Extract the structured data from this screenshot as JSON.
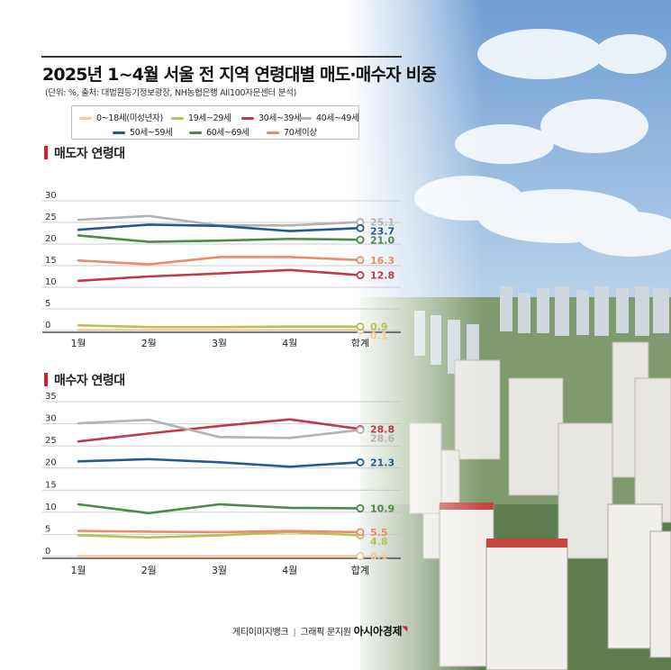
{
  "title": "2025년 1~4월 서울 전 지역 연령대별 매도·매수자 비중",
  "subtitle": "(단위: %, 출처: 대법원등기정보광장, NH농협은행 All100자문센터 분석)",
  "credit": {
    "image": "게티이미지뱅크",
    "graphic": "그래픽 문지원",
    "brand": "아시아경제"
  },
  "legend": [
    {
      "label": "0~18세(미성년자)",
      "color": "#f2c9a0"
    },
    {
      "label": "19세~29세",
      "color": "#b7bf55"
    },
    {
      "label": "30세~39세",
      "color": "#c0394a"
    },
    {
      "label": "40세~49세",
      "color": "#b3b3b3"
    },
    {
      "label": "50세~59세",
      "color": "#245a8f"
    },
    {
      "label": "60세~69세",
      "color": "#4c8a49"
    },
    {
      "label": "70세이상",
      "color": "#ec8a6a"
    }
  ],
  "chart_data": [
    {
      "type": "line",
      "title": "매도자 연령대",
      "categories": [
        "1월",
        "2월",
        "3월",
        "4월",
        "합계"
      ],
      "yticks": [
        "30",
        "25",
        "20",
        "15",
        "10",
        "5",
        "0"
      ],
      "ylim": [
        0,
        30
      ],
      "series": [
        {
          "name": "0~18세(미성년자)",
          "values": [
            0.1,
            0.1,
            0.1,
            0.1,
            0.1
          ],
          "end_label": "0.1"
        },
        {
          "name": "19세~29세",
          "values": [
            1.2,
            0.8,
            0.8,
            0.9,
            0.9
          ],
          "end_label": "0.9"
        },
        {
          "name": "30세~39세",
          "values": [
            11.5,
            12.5,
            13.2,
            14.0,
            12.8
          ],
          "end_label": "12.8"
        },
        {
          "name": "40세~49세",
          "values": [
            25.6,
            26.5,
            24.3,
            24.3,
            25.1
          ],
          "end_label": "25.1"
        },
        {
          "name": "50세~59세",
          "values": [
            23.3,
            24.5,
            24.2,
            23.0,
            23.7
          ],
          "end_label": "23.7"
        },
        {
          "name": "60세~69세",
          "values": [
            22.0,
            20.5,
            20.8,
            21.2,
            21.0
          ],
          "end_label": "21.0"
        },
        {
          "name": "70세이상",
          "values": [
            16.2,
            15.3,
            17.0,
            17.0,
            16.3
          ],
          "end_label": "16.3"
        }
      ]
    },
    {
      "type": "line",
      "title": "매수자 연령대",
      "categories": [
        "1월",
        "2월",
        "3월",
        "4월",
        "합계"
      ],
      "yticks": [
        "35",
        "30",
        "25",
        "20",
        "15",
        "10",
        "5",
        "0"
      ],
      "ylim": [
        0,
        35
      ],
      "series": [
        {
          "name": "0~18세(미성년자)",
          "values": [
            0.1,
            0.1,
            0.1,
            0.1,
            0.1
          ],
          "end_label": "0.1"
        },
        {
          "name": "19세~29세",
          "values": [
            4.8,
            4.3,
            4.8,
            5.5,
            4.8
          ],
          "end_label": "4.8"
        },
        {
          "name": "30세~39세",
          "values": [
            26.0,
            27.8,
            29.5,
            31.0,
            28.8
          ],
          "end_label": "28.8"
        },
        {
          "name": "40세~49세",
          "values": [
            30.1,
            30.9,
            27.0,
            26.8,
            28.6
          ],
          "end_label": "28.6"
        },
        {
          "name": "50세~59세",
          "values": [
            21.5,
            22.0,
            21.3,
            20.3,
            21.3
          ],
          "end_label": "21.3"
        },
        {
          "name": "60세~69세",
          "values": [
            11.8,
            9.8,
            11.8,
            11.0,
            10.9
          ],
          "end_label": "10.9"
        },
        {
          "name": "70세이상",
          "values": [
            5.8,
            5.6,
            5.5,
            5.8,
            5.5
          ],
          "end_label": "5.5"
        }
      ]
    }
  ]
}
